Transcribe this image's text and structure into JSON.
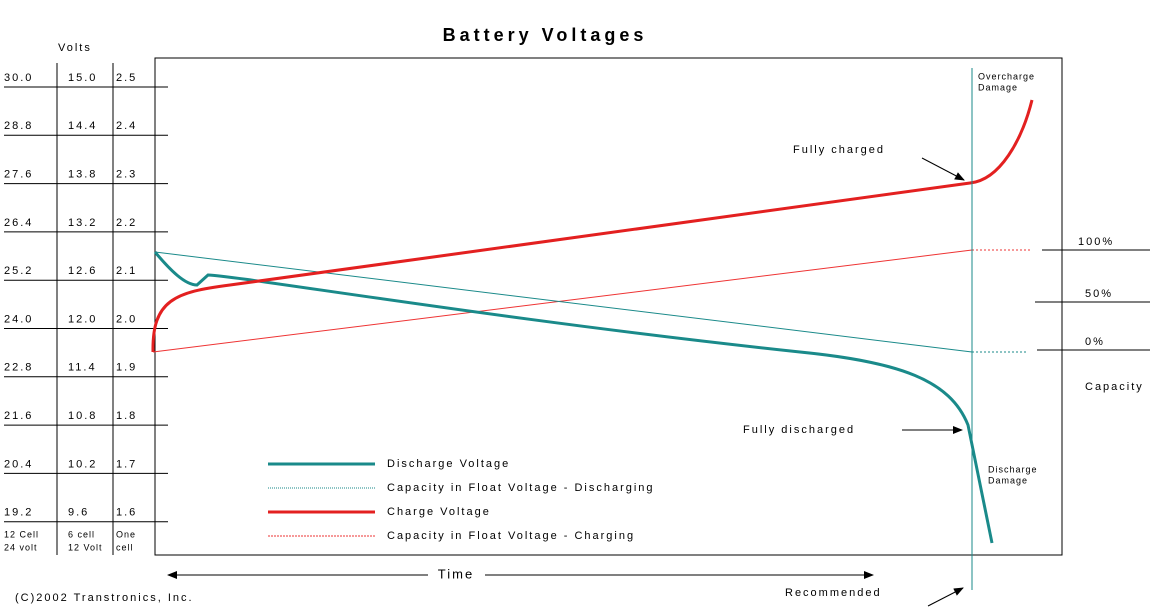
{
  "title": "Battery Voltages",
  "axis_label": "Volts",
  "voltage_table": {
    "columns": [
      {
        "values": [
          "30.0",
          "28.8",
          "27.6",
          "26.4",
          "25.2",
          "24.0",
          "22.8",
          "21.6",
          "20.4",
          "19.2"
        ],
        "footer": [
          "12 Cell",
          "24 volt"
        ]
      },
      {
        "values": [
          "15.0",
          "14.4",
          "13.8",
          "13.2",
          "12.6",
          "12.0",
          "11.4",
          "10.8",
          "10.2",
          "9.6"
        ],
        "footer": [
          "6 cell",
          "12 Volt"
        ]
      },
      {
        "values": [
          "2.5",
          "2.4",
          "2.3",
          "2.2",
          "2.1",
          "2.0",
          "1.9",
          "1.8",
          "1.7",
          "1.6"
        ],
        "footer": [
          "One",
          "cell"
        ]
      }
    ]
  },
  "capacity": {
    "levels": [
      "100%",
      "50%",
      "0%"
    ],
    "title": "Capacity"
  },
  "annotations": {
    "overcharge": [
      "Overcharge",
      "Damage"
    ],
    "fully_charged": "Fully charged",
    "fully_discharged": "Fully discharged",
    "discharge_damage": [
      "Discharge",
      "Damage"
    ],
    "recommended": "Recommended"
  },
  "legend": [
    "Discharge Voltage",
    "Capacity in Float Voltage - Discharging",
    "Charge Voltage",
    "Capacity in Float Voltage - Charging"
  ],
  "time_label": "Time",
  "copyright": "(C)2002 Transtronics, Inc."
}
